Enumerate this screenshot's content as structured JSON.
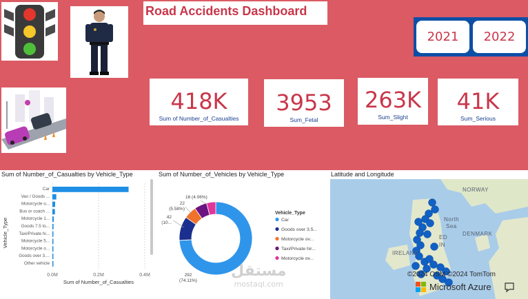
{
  "dashboard": {
    "title": "Road Accidents Dashboard",
    "images": [
      "traffic-light",
      "police-officer",
      "road-traffic-illustration"
    ]
  },
  "years": [
    "2021",
    "2022"
  ],
  "kpis": [
    {
      "value": "418K",
      "label": "Sum of Number_of_Casualties"
    },
    {
      "value": "3953",
      "label": "Sum_Fetal"
    },
    {
      "value": "263K",
      "label": "Sum_Slight"
    },
    {
      "value": "41K",
      "label": "Sum_Serious"
    }
  ],
  "colors": {
    "background": "#db5a64",
    "accent_text": "#c9364a",
    "kpi_label": "#1a3f8f",
    "year_panel": "#0e4fa6",
    "bar": "#1f8fe5"
  },
  "bar_chart": {
    "title": "Sum of Number_of_Casualties by Vehicle_Type",
    "ylabel": "Vehicle_Type",
    "xlabel": "Sum of Number_of_Casualties"
  },
  "donut_chart": {
    "title": "Sum of Number_of_Vehicles by Vehicle_Type",
    "legend_title": "Vehicle_Type",
    "slice_labels": [
      "292\n(74.11%)",
      "42\n(10...",
      "22\n(5.58%)",
      "16 (4.06%)"
    ]
  },
  "map": {
    "title": "Latitude and Longitude",
    "labels": [
      "NORWAY",
      "North",
      "Sea",
      "DENMARK",
      "IRELAND",
      "ED",
      "IN"
    ],
    "attribution": "©2024 OSM  ©2024 TomTom",
    "provider": "Microsoft Azure"
  },
  "watermark": {
    "arabic": "مستقل",
    "latin": "mostaql.com"
  },
  "chart_data": [
    {
      "type": "bar",
      "orientation": "horizontal",
      "title": "Sum of Number_of_Casualties by Vehicle_Type",
      "xlabel": "Sum of Number_of_Casualties",
      "ylabel": "Vehicle_Type",
      "categories": [
        "Car",
        "Van / Goods ...",
        "Motorcycle o...",
        "Bus or coach ...",
        "Motorcycle 1...",
        "Goods 7.5 to...",
        "Taxi/Private hi...",
        "Motorcycle 5...",
        "Motorcycle o...",
        "Goods over 3....",
        "Other vehicle"
      ],
      "values": [
        330000,
        17000,
        12000,
        11000,
        6000,
        5000,
        4000,
        3500,
        3000,
        2500,
        1500
      ],
      "xlim": [
        0,
        400000
      ],
      "xticks": [
        "0.0M",
        "0.2M",
        "0.4M"
      ],
      "grid": true
    },
    {
      "type": "pie",
      "donut": true,
      "title": "Sum of Number_of_Vehicles by Vehicle_Type",
      "legend_title": "Vehicle_Type",
      "legend_position": "right",
      "categories": [
        "Car",
        "Goods over 3.5...",
        "Motorcycle ov...",
        "Taxi/Private hir...",
        "Motorcycle ov..."
      ],
      "values": [
        292,
        42,
        22,
        22,
        16
      ],
      "colors": [
        "#2f95ea",
        "#1b2f8e",
        "#f1722a",
        "#6b1480",
        "#e0359a"
      ]
    }
  ]
}
